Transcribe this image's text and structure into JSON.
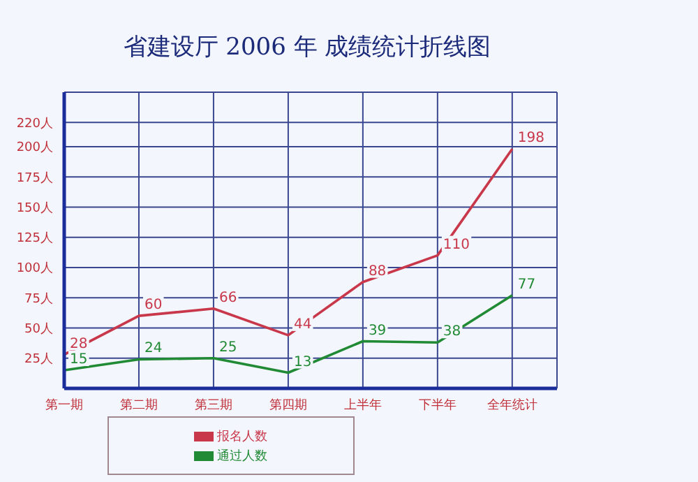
{
  "chart_data": {
    "type": "line",
    "title": "省建设厅 2006 年 成绩统计折线图",
    "categories": [
      "第一期",
      "第二期",
      "第三期",
      "第四期",
      "上半年",
      "下半年",
      "全年统计"
    ],
    "series": [
      {
        "name": "报名人数",
        "color": "#c8374a",
        "values": [
          28,
          60,
          66,
          44,
          88,
          110,
          198
        ]
      },
      {
        "name": "通过人数",
        "color": "#218a35",
        "values": [
          15,
          24,
          25,
          13,
          39,
          38,
          77
        ]
      }
    ],
    "ylim": [
      0,
      245
    ],
    "yticks": [
      {
        "value": 25,
        "label": "25人"
      },
      {
        "value": 50,
        "label": "50人"
      },
      {
        "value": 75,
        "label": "75人"
      },
      {
        "value": 100,
        "label": "100人"
      },
      {
        "value": 125,
        "label": "125人"
      },
      {
        "value": 150,
        "label": "150人"
      },
      {
        "value": 175,
        "label": "175人"
      },
      {
        "value": 200,
        "label": "200人"
      },
      {
        "value": 220,
        "label": "220人"
      }
    ],
    "grid": true,
    "legend": "bottom",
    "data_labels": true,
    "marker": "none",
    "line_style": "solid"
  }
}
